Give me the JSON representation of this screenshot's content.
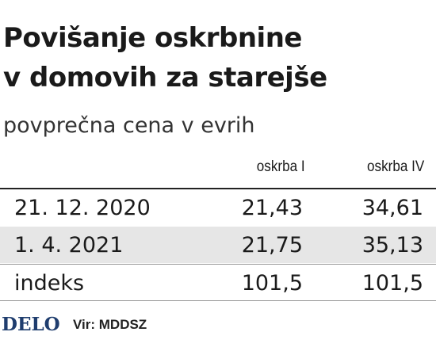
{
  "header": {
    "title_lines": [
      "Povišanje oskrbnine",
      "v domovih za starejše"
    ],
    "subtitle": "povprečna cena v evrih"
  },
  "table": {
    "columns": [
      "oskrba I",
      "oskrba IV"
    ],
    "rows": [
      [
        "21. 12. 2020",
        "21,43",
        "34,61"
      ],
      [
        "1. 4. 2021",
        "21,75",
        "35,13"
      ],
      [
        "indeks",
        "101,5",
        "101,5"
      ]
    ]
  },
  "footer": {
    "logo": "DELO",
    "source": "Vir: MDDSZ"
  }
}
